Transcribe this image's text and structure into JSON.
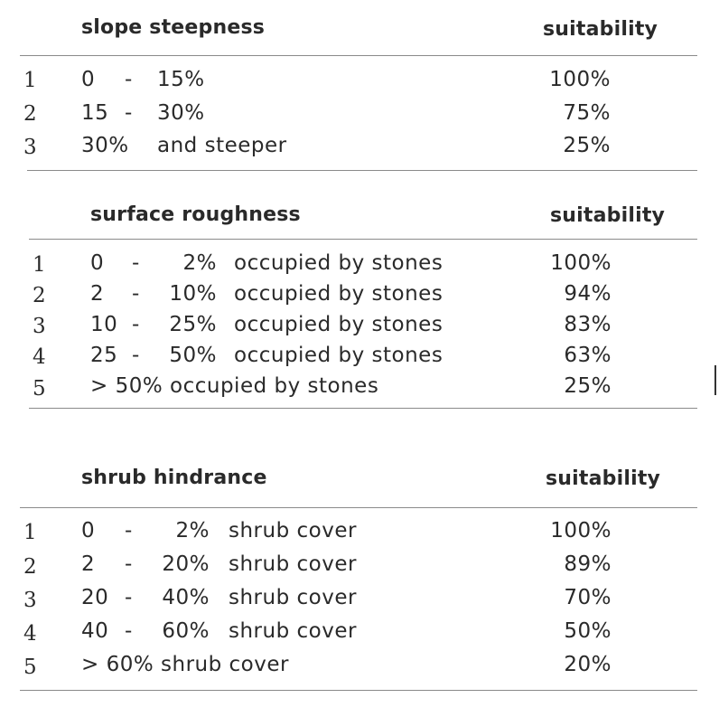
{
  "tables": [
    {
      "title": "slope steepness",
      "suitability_header": "suitability",
      "rows": [
        {
          "index": "1",
          "c1": "0",
          "sep": "-",
          "c2": "15%",
          "desc": "",
          "value": "100%"
        },
        {
          "index": "2",
          "c1": "15",
          "sep": "-",
          "c2": "30%",
          "desc": "",
          "value": "75%"
        },
        {
          "index": "3",
          "c1": "30%",
          "sep": "",
          "c2": "and steeper",
          "desc": "",
          "value": "25%"
        }
      ]
    },
    {
      "title": "surface roughness",
      "suitability_header": "suitability",
      "rows": [
        {
          "index": "1",
          "c1": "0",
          "sep": "-",
          "c2": "2%",
          "desc": "occupied by stones",
          "value": "100%"
        },
        {
          "index": "2",
          "c1": "2",
          "sep": "-",
          "c2": "10%",
          "desc": "occupied by stones",
          "value": "94%"
        },
        {
          "index": "3",
          "c1": "10",
          "sep": "-",
          "c2": "25%",
          "desc": "occupied by stones",
          "value": "83%"
        },
        {
          "index": "4",
          "c1": "25",
          "sep": "-",
          "c2": "50%",
          "desc": "occupied by stones",
          "value": "63%"
        },
        {
          "index": "5",
          "c1": "> 50% occupied by stones",
          "sep": "",
          "c2": "",
          "desc": "",
          "value": "25%"
        }
      ]
    },
    {
      "title": "shrub hindrance",
      "suitability_header": "suitability",
      "rows": [
        {
          "index": "1",
          "c1": "0",
          "sep": "-",
          "c2": "2%",
          "desc": "shrub cover",
          "value": "100%"
        },
        {
          "index": "2",
          "c1": "2",
          "sep": "-",
          "c2": "20%",
          "desc": "shrub cover",
          "value": "89%"
        },
        {
          "index": "3",
          "c1": "20",
          "sep": "-",
          "c2": "40%",
          "desc": "shrub cover",
          "value": "70%"
        },
        {
          "index": "4",
          "c1": "40",
          "sep": "-",
          "c2": "60%",
          "desc": "shrub cover",
          "value": "50%"
        },
        {
          "index": "5",
          "c1": "> 60%  shrub cover",
          "sep": "",
          "c2": "",
          "desc": "",
          "value": "20%"
        }
      ]
    }
  ]
}
